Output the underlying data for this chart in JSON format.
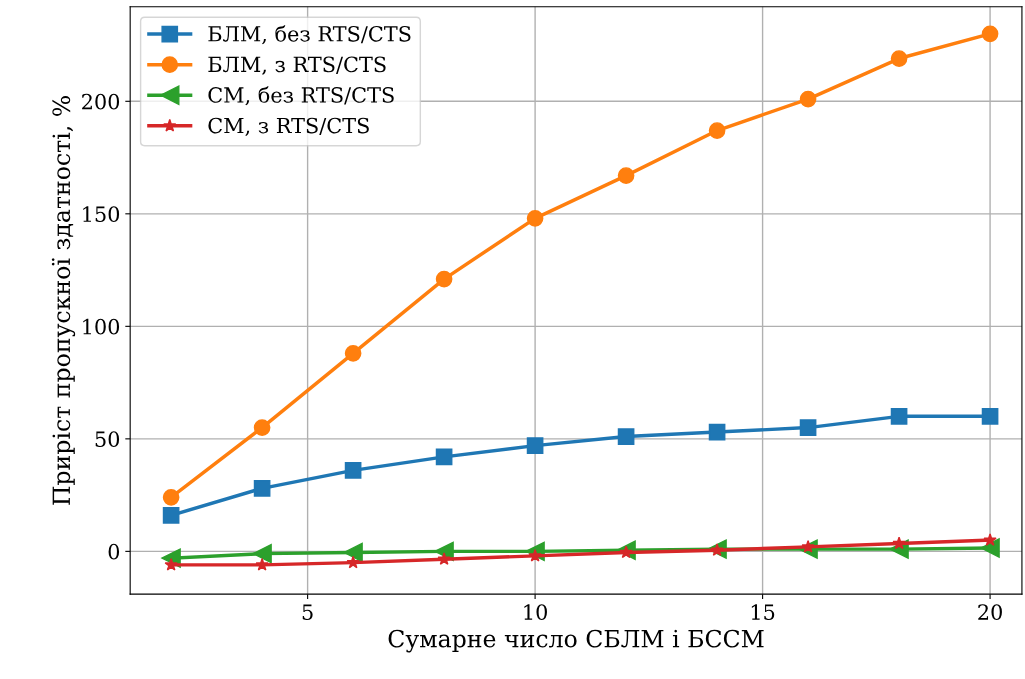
{
  "chart_data": {
    "type": "line",
    "xlabel": "Сумарне число СБЛМ і БССМ",
    "ylabel": "Приріст пропускної здатності, %",
    "x": [
      2,
      4,
      6,
      8,
      10,
      12,
      14,
      16,
      18,
      20
    ],
    "series": [
      {
        "name": "БЛМ, без RTS/CTS",
        "color": "#1f77b4",
        "marker": "square",
        "values": [
          16,
          28,
          36,
          42,
          47,
          51,
          53,
          55,
          60,
          60
        ]
      },
      {
        "name": "БЛМ, з RTS/CTS",
        "color": "#ff7f0e",
        "marker": "circle",
        "values": [
          24,
          55,
          88,
          121,
          148,
          167,
          187,
          201,
          219,
          230
        ]
      },
      {
        "name": "СМ, без RTS/CTS",
        "color": "#2ca02c",
        "marker": "triangle",
        "values": [
          -3,
          -1,
          -0.5,
          0,
          0,
          0.5,
          1,
          1,
          1,
          1.5
        ]
      },
      {
        "name": "СМ, з RTS/CTS",
        "color": "#d62728",
        "marker": "star",
        "values": [
          -6,
          -6,
          -5,
          -3.5,
          -2,
          -0.5,
          0.5,
          2,
          3.5,
          5
        ]
      }
    ],
    "xlim": [
      1.1,
      20.7
    ],
    "xticks": [
      5,
      10,
      15,
      20
    ],
    "ylim": [
      -19,
      242
    ],
    "yticks": [
      0,
      50,
      100,
      150,
      200
    ],
    "grid": true,
    "legend": "top left",
    "line_style": "solid"
  }
}
